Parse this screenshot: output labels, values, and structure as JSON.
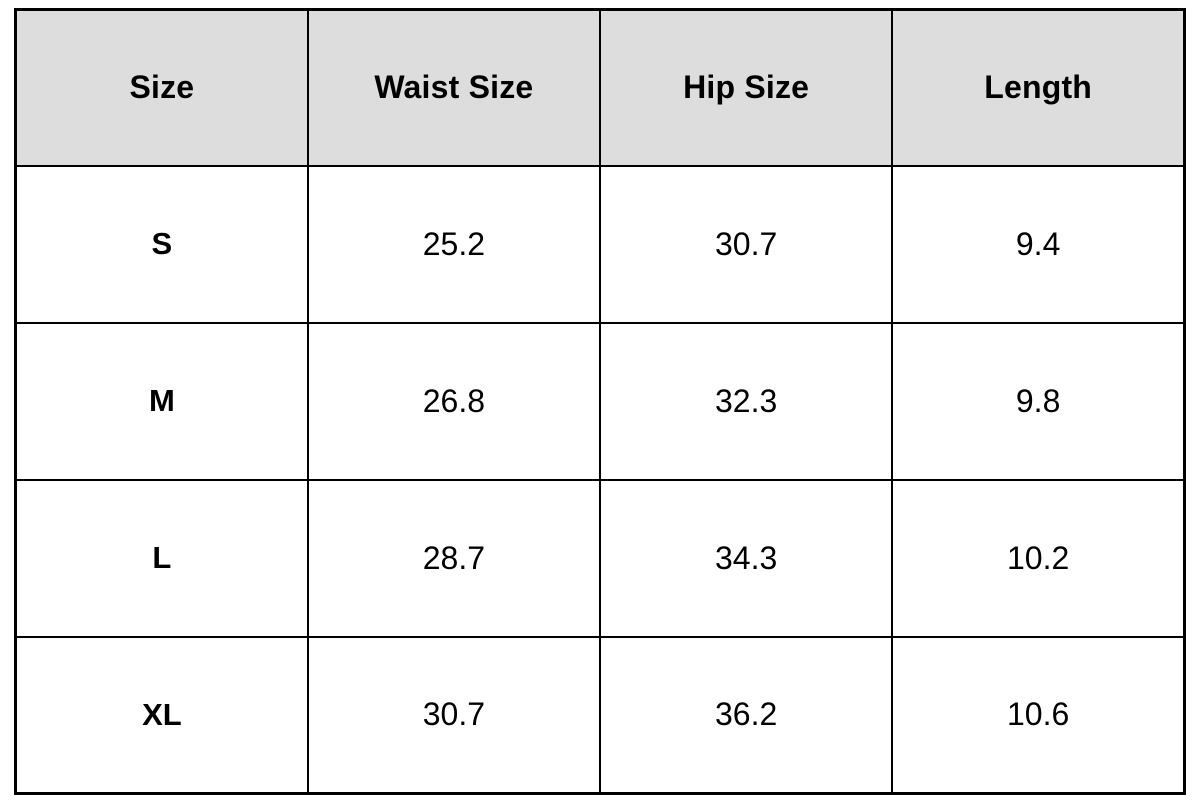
{
  "table": {
    "columns": [
      "Size",
      "Waist Size",
      "Hip Size",
      "Length"
    ],
    "rows": [
      {
        "size": "S",
        "waist": "25.2",
        "hip": "30.7",
        "length": "9.4"
      },
      {
        "size": "M",
        "waist": "26.8",
        "hip": "32.3",
        "length": "9.8"
      },
      {
        "size": "L",
        "waist": "28.7",
        "hip": "34.3",
        "length": "10.2"
      },
      {
        "size": "XL",
        "waist": "30.7",
        "hip": "36.2",
        "length": "10.6"
      }
    ]
  },
  "colors": {
    "header_background": "#dddddd",
    "border": "#000000",
    "text": "#000000",
    "page_background": "#ffffff"
  },
  "chart_data": {
    "type": "table",
    "title": "",
    "columns": [
      "Size",
      "Waist Size",
      "Hip Size",
      "Length"
    ],
    "rows": [
      [
        "S",
        25.2,
        30.7,
        9.4
      ],
      [
        "M",
        26.8,
        32.3,
        9.8
      ],
      [
        "L",
        28.7,
        34.3,
        10.2
      ],
      [
        "XL",
        30.7,
        36.2,
        10.6
      ]
    ]
  }
}
